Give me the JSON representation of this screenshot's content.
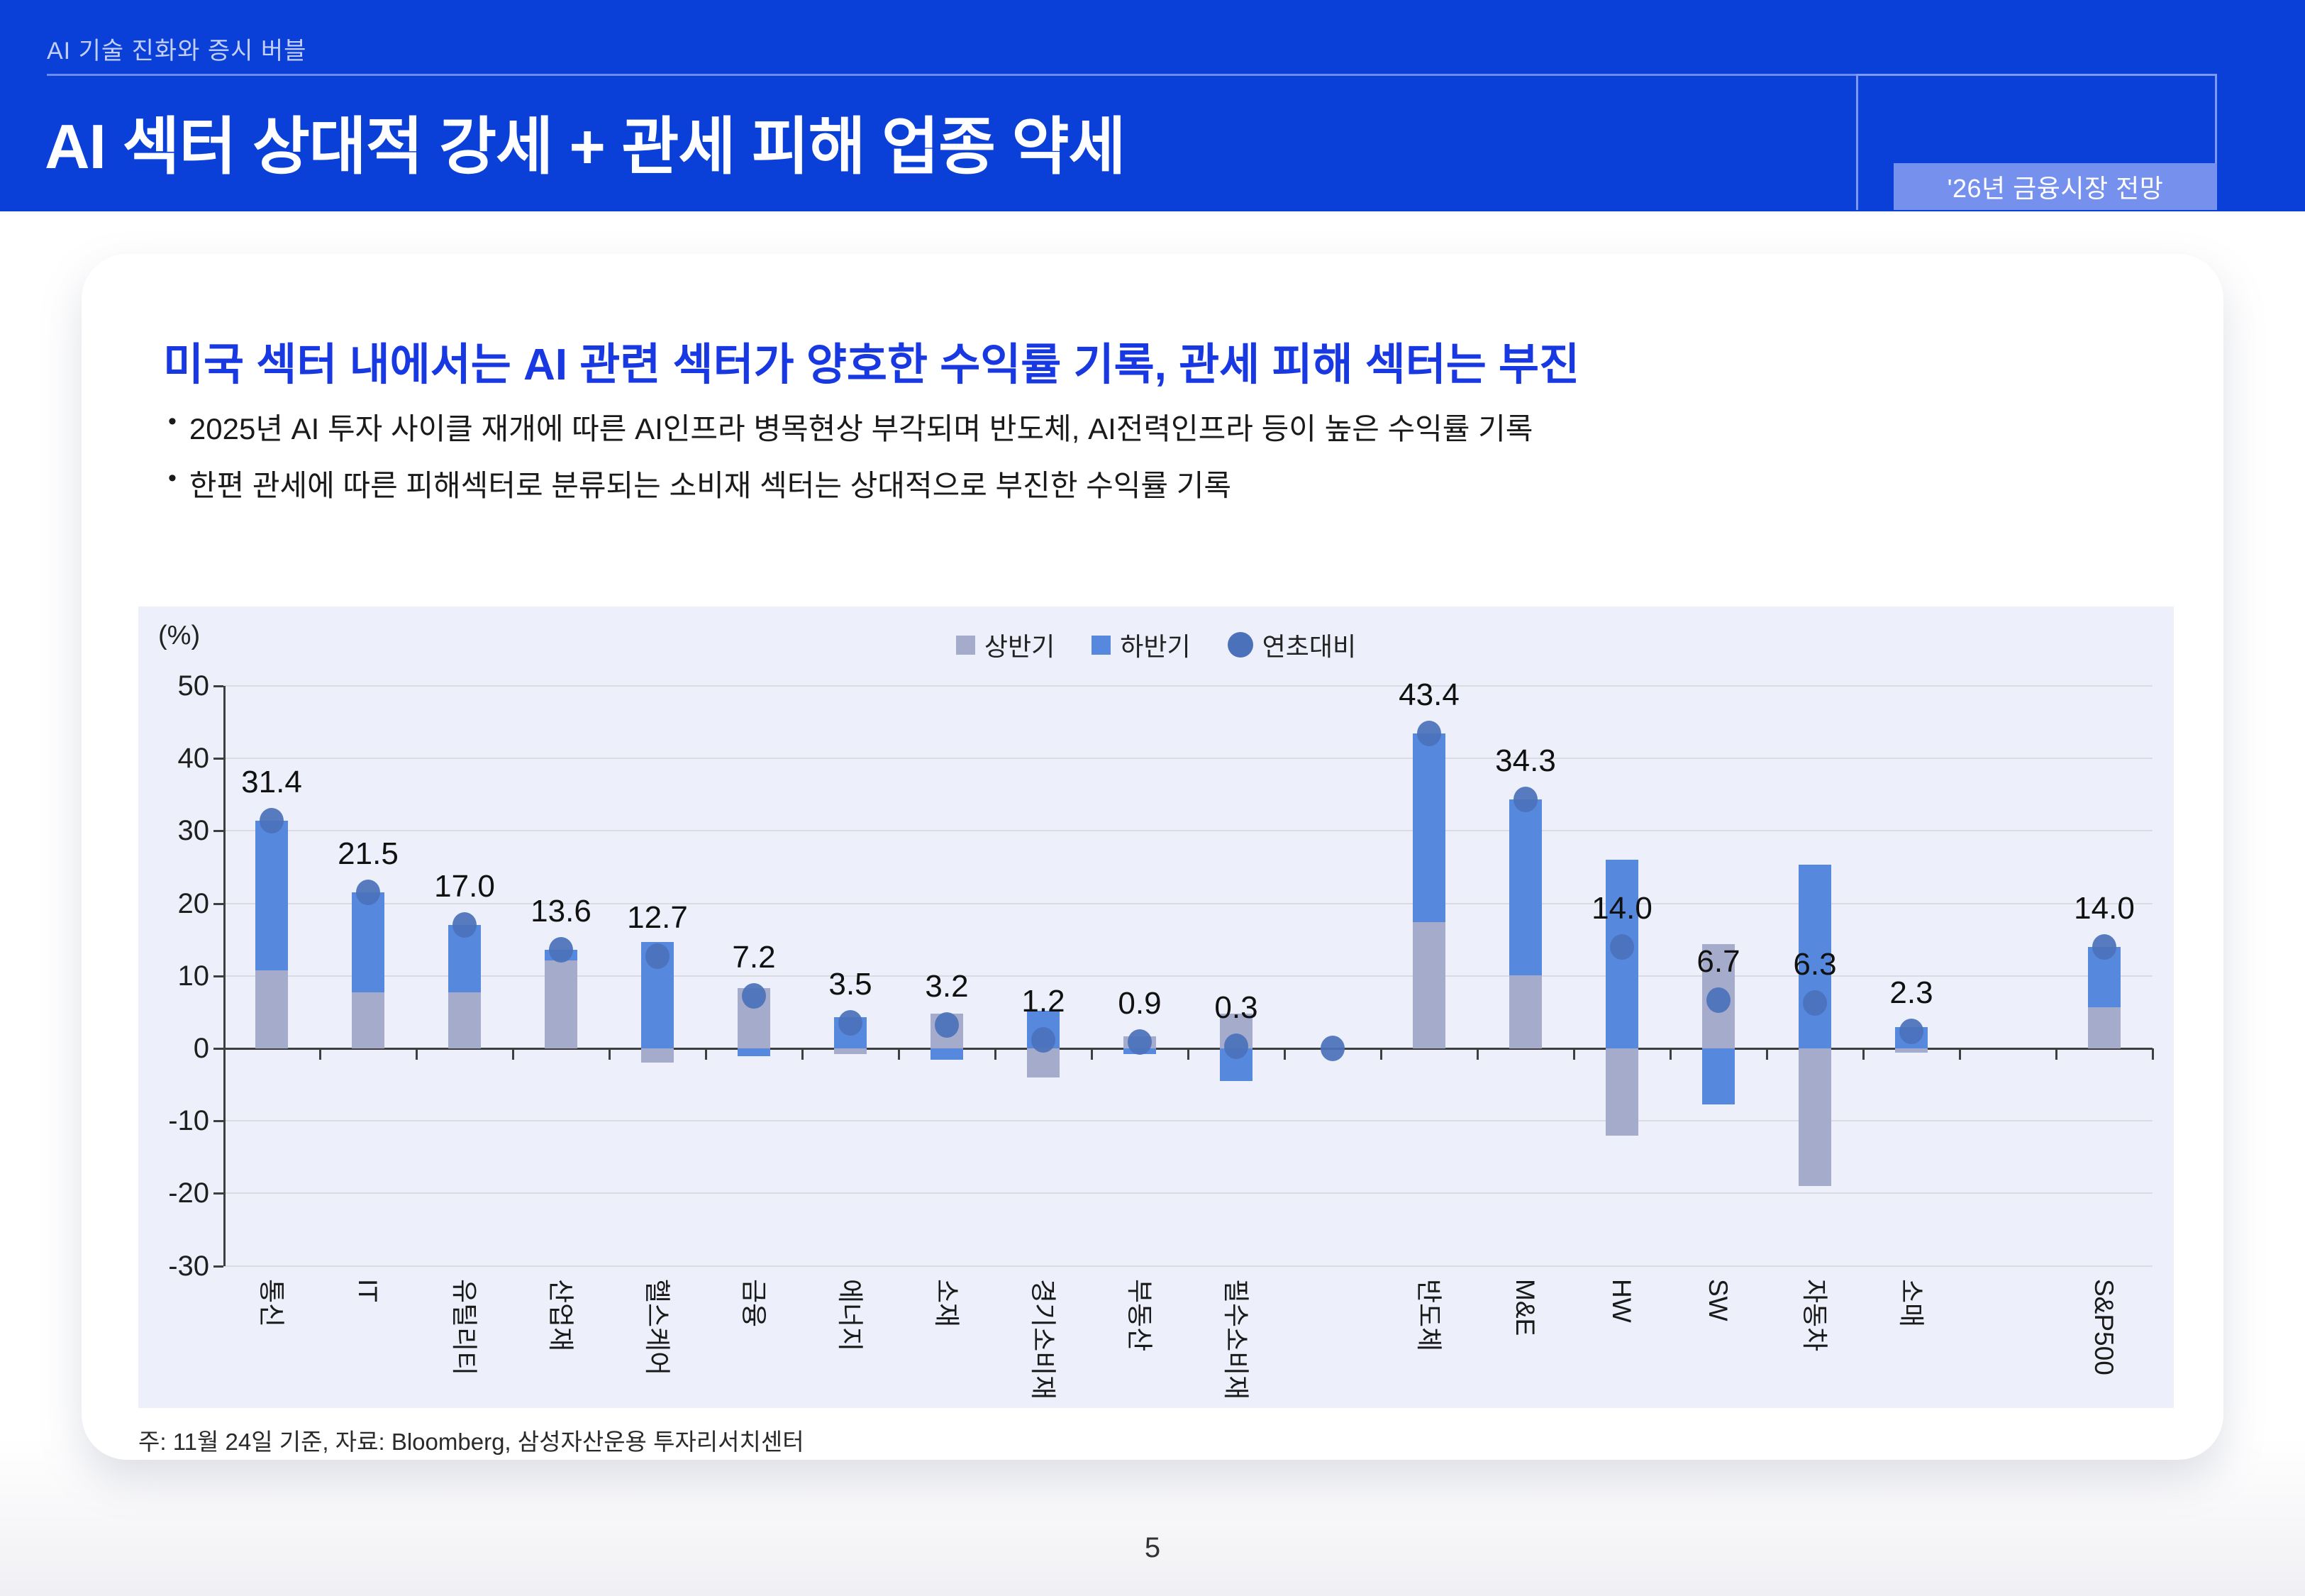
{
  "header": {
    "eyebrow": "AI 기술 진화와 증시 버블",
    "title": "AI 섹터 상대적 강세 + 관세 피해 업종 약세",
    "badge": "'26년 금융시장 전망"
  },
  "main": {
    "heading": "미국 섹터 내에서는 AI 관련 섹터가 양호한 수익률 기록, 관세 피해 섹터는 부진",
    "bullet_char": "•",
    "bullets": [
      "2025년 AI 투자 사이클 재개에 따른 AI인프라 병목현상 부각되며 반도체, AI전력인프라 등이 높은 수익률 기록",
      "한편 관세에 따른 피해섹터로 분류되는 소비재 섹터는 상대적으로 부진한 수익률 기록"
    ],
    "source_note": "주: 11월 24일 기준, 자료: Bloomberg, 삼성자산운용 투자리서치센터"
  },
  "page_number": "5",
  "colors": {
    "header_bg": "#0A40D8",
    "badge_bg": "#7690EE",
    "heading_blue": "#1839E1",
    "panel_bg": "#EDF0FA",
    "bar_h1": "#A5ABCB",
    "bar_h2": "#5688DE",
    "dot": "#4B71BA",
    "gridline": "#DBDCE1",
    "axis": "#3F3F3F"
  },
  "chart_data": {
    "type": "bar",
    "subtype": "stacked-bars-with-total-dot",
    "unit_label": "(%)",
    "grid": true,
    "legend_position": "top-center",
    "ylim": [
      -30,
      50
    ],
    "yticks": [
      50,
      40,
      30,
      20,
      10,
      0,
      -10,
      -20,
      -30
    ],
    "legend": [
      {
        "name": "상반기",
        "color": "#A5ABCB",
        "shape": "square"
      },
      {
        "name": "하반기",
        "color": "#5688DE",
        "shape": "square"
      },
      {
        "name": "연초대비",
        "color": "#4B71BA",
        "shape": "circle"
      }
    ],
    "categories": [
      "통신",
      "IT",
      "유틸리티",
      "산업재",
      "헬스케어",
      "금융",
      "에너지",
      "소재",
      "경기소비재",
      "부동산",
      "필수소비재",
      "",
      "반도체",
      "M&E",
      "HW",
      "SW",
      "자동차",
      "소매",
      "",
      "S&P500"
    ],
    "series": [
      {
        "name": "상반기",
        "values": [
          10.8,
          7.7,
          7.7,
          12.1,
          -2.0,
          8.3,
          -0.8,
          4.8,
          -4.0,
          1.7,
          4.8,
          null,
          17.4,
          10.1,
          -12.0,
          14.4,
          -19.0,
          -0.6,
          null,
          5.7
        ]
      },
      {
        "name": "하반기",
        "values": [
          20.6,
          13.8,
          9.3,
          1.5,
          14.7,
          -1.1,
          4.3,
          -1.6,
          5.2,
          -0.8,
          -4.5,
          null,
          26.0,
          24.2,
          26.0,
          -7.7,
          25.3,
          2.9,
          null,
          8.3
        ]
      },
      {
        "name": "연초대비",
        "values": [
          31.4,
          21.5,
          17.0,
          13.6,
          12.7,
          7.2,
          3.5,
          3.2,
          1.2,
          0.9,
          0.3,
          0.0,
          43.4,
          34.3,
          14.0,
          6.7,
          6.3,
          2.3,
          null,
          14.0
        ]
      }
    ],
    "data_labels": [
      "31.4",
      "21.5",
      "17.0",
      "13.6",
      "12.7",
      "7.2",
      "3.5",
      "3.2",
      "1.2",
      "0.9",
      "0.3",
      "",
      "43.4",
      "34.3",
      "14.0",
      "6.7",
      "6.3",
      "2.3",
      "",
      "14.0"
    ]
  }
}
